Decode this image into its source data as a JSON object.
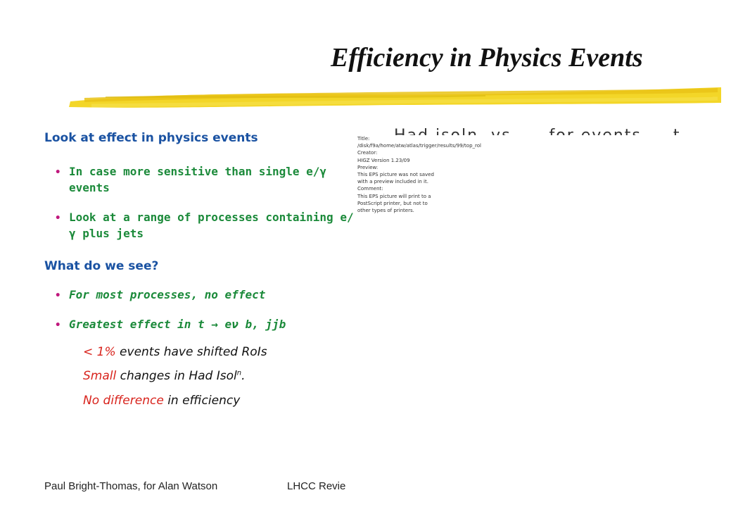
{
  "slide": {
    "title": "Efficiency in Physics Events",
    "cut_text": "Had isoln. vs. ... for events ... t"
  },
  "left": {
    "section1": {
      "heading": "Look at effect in physics events",
      "bullets": [
        {
          "text": "In case more sensitive than single e/γ events"
        },
        {
          "text": "Look at a range of processes containing e/γ plus jets"
        }
      ]
    },
    "section2": {
      "heading": "What do we see?",
      "bullets": [
        {
          "text": "For most processes, no effect"
        },
        {
          "text": "Greatest effect in t → eν b, jjb"
        }
      ],
      "details": {
        "line1_symbol": "<",
        "line1_highlight": "1%",
        "line1_rest": " events have shifted RoIs",
        "line2_highlight": "Small",
        "line2_rest": " changes in Had Isol",
        "line2_sup": "n",
        "line2_end": ".",
        "line3_highlight": "No difference",
        "line3_rest": " in efficiency"
      }
    }
  },
  "eps_placeholder": {
    "lines": [
      "Title:",
      "/disk/f9a/home/atw/atlas/trigger/results/99/top_rol",
      "Creator:",
      "HIGZ Version 1.23/09",
      "Preview:",
      "This EPS picture was not saved",
      "with a preview included in it.",
      "Comment:",
      "This EPS picture will print to a",
      "PostScript printer, but not to",
      "other types of printers."
    ]
  },
  "footer": {
    "author": "Paul Bright-Thomas, for Alan Watson",
    "meeting": "LHCC Revie"
  },
  "colors": {
    "heading": "#1a52a2",
    "bullet_text": "#1b8a3a",
    "bullet_marker": "#c0187d",
    "highlight": "#d8231c",
    "brush": "#f2d41c"
  }
}
